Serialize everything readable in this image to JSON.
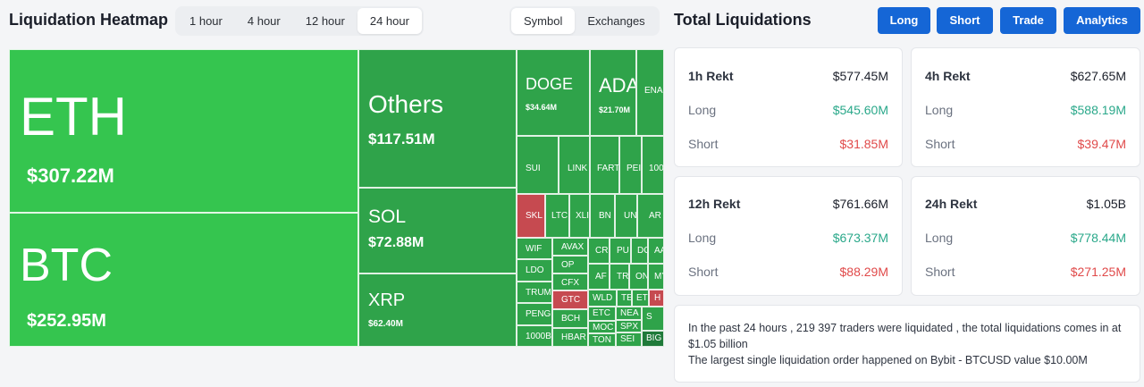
{
  "heatmap": {
    "title": "Liquidation Heatmap",
    "time_tabs": [
      "1 hour",
      "4 hour",
      "12 hour",
      "24 hour"
    ],
    "active_time_tab": "24 hour",
    "view_tabs": [
      "Symbol",
      "Exchanges"
    ],
    "active_view_tab": "Symbol",
    "colors": {
      "green_bright": "#35c54f",
      "green": "#2fa34a",
      "green_dark": "#1f7a3a",
      "red": "#c64a50"
    },
    "tiles": [
      {
        "symbol": "ETH",
        "value": "$307.22M"
      },
      {
        "symbol": "BTC",
        "value": "$252.95M"
      },
      {
        "symbol": "Others",
        "value": "$117.51M"
      },
      {
        "symbol": "SOL",
        "value": "$72.88M"
      },
      {
        "symbol": "XRP",
        "value": "$62.40M"
      },
      {
        "symbol": "DOGE",
        "value": "$34.64M"
      },
      {
        "symbol": "ADA",
        "value": "$21.70M"
      },
      {
        "symbol": "ENA",
        "value": ""
      },
      {
        "symbol": "SUI",
        "value": ""
      },
      {
        "symbol": "LINK",
        "value": ""
      },
      {
        "symbol": "FART",
        "value": ""
      },
      {
        "symbol": "PEI",
        "value": ""
      },
      {
        "symbol": "100",
        "value": ""
      },
      {
        "symbol": "SKL",
        "value": ""
      },
      {
        "symbol": "LTC",
        "value": ""
      },
      {
        "symbol": "XLI",
        "value": ""
      },
      {
        "symbol": "BN",
        "value": ""
      },
      {
        "symbol": "UN",
        "value": ""
      },
      {
        "symbol": "AR",
        "value": ""
      },
      {
        "symbol": "WIF",
        "value": ""
      },
      {
        "symbol": "LDO",
        "value": ""
      },
      {
        "symbol": "TRUM",
        "value": ""
      },
      {
        "symbol": "PENG",
        "value": ""
      },
      {
        "symbol": "1000B",
        "value": ""
      },
      {
        "symbol": "AVAX",
        "value": ""
      },
      {
        "symbol": "OP",
        "value": ""
      },
      {
        "symbol": "CFX",
        "value": ""
      },
      {
        "symbol": "GTC",
        "value": ""
      },
      {
        "symbol": "BCH",
        "value": ""
      },
      {
        "symbol": "HBAR",
        "value": ""
      },
      {
        "symbol": "CR",
        "value": ""
      },
      {
        "symbol": "PU",
        "value": ""
      },
      {
        "symbol": "DC",
        "value": ""
      },
      {
        "symbol": "AA",
        "value": ""
      },
      {
        "symbol": "AF",
        "value": ""
      },
      {
        "symbol": "TR",
        "value": ""
      },
      {
        "symbol": "ON",
        "value": ""
      },
      {
        "symbol": "MY",
        "value": ""
      },
      {
        "symbol": "WLD",
        "value": ""
      },
      {
        "symbol": "TE",
        "value": ""
      },
      {
        "symbol": "ET",
        "value": ""
      },
      {
        "symbol": "H",
        "value": ""
      },
      {
        "symbol": "ETC",
        "value": ""
      },
      {
        "symbol": "NEA",
        "value": ""
      },
      {
        "symbol": "S",
        "value": ""
      },
      {
        "symbol": "MOC",
        "value": ""
      },
      {
        "symbol": "SPX",
        "value": ""
      },
      {
        "symbol": "TON",
        "value": ""
      },
      {
        "symbol": "SEI",
        "value": ""
      },
      {
        "symbol": "BIG",
        "value": ""
      }
    ]
  },
  "total": {
    "title": "Total Liquidations",
    "buttons": [
      "Long",
      "Short",
      "Trade",
      "Analytics"
    ],
    "cards": [
      {
        "title": "1h Rekt",
        "total": "$577.45M",
        "long_label": "Long",
        "long": "$545.60M",
        "short_label": "Short",
        "short": "$31.85M"
      },
      {
        "title": "4h Rekt",
        "total": "$627.65M",
        "long_label": "Long",
        "long": "$588.19M",
        "short_label": "Short",
        "short": "$39.47M"
      },
      {
        "title": "12h Rekt",
        "total": "$761.66M",
        "long_label": "Long",
        "long": "$673.37M",
        "short_label": "Short",
        "short": "$88.29M"
      },
      {
        "title": "24h Rekt",
        "total": "$1.05B",
        "long_label": "Long",
        "long": "$778.44M",
        "short_label": "Short",
        "short": "$271.25M"
      }
    ],
    "summary_line1": "In the past 24 hours , 219 397 traders were liquidated , the total liquidations comes in at $1.05 billion",
    "summary_line2": "The largest single liquidation order happened on Bybit - BTCUSD value $10.00M"
  }
}
